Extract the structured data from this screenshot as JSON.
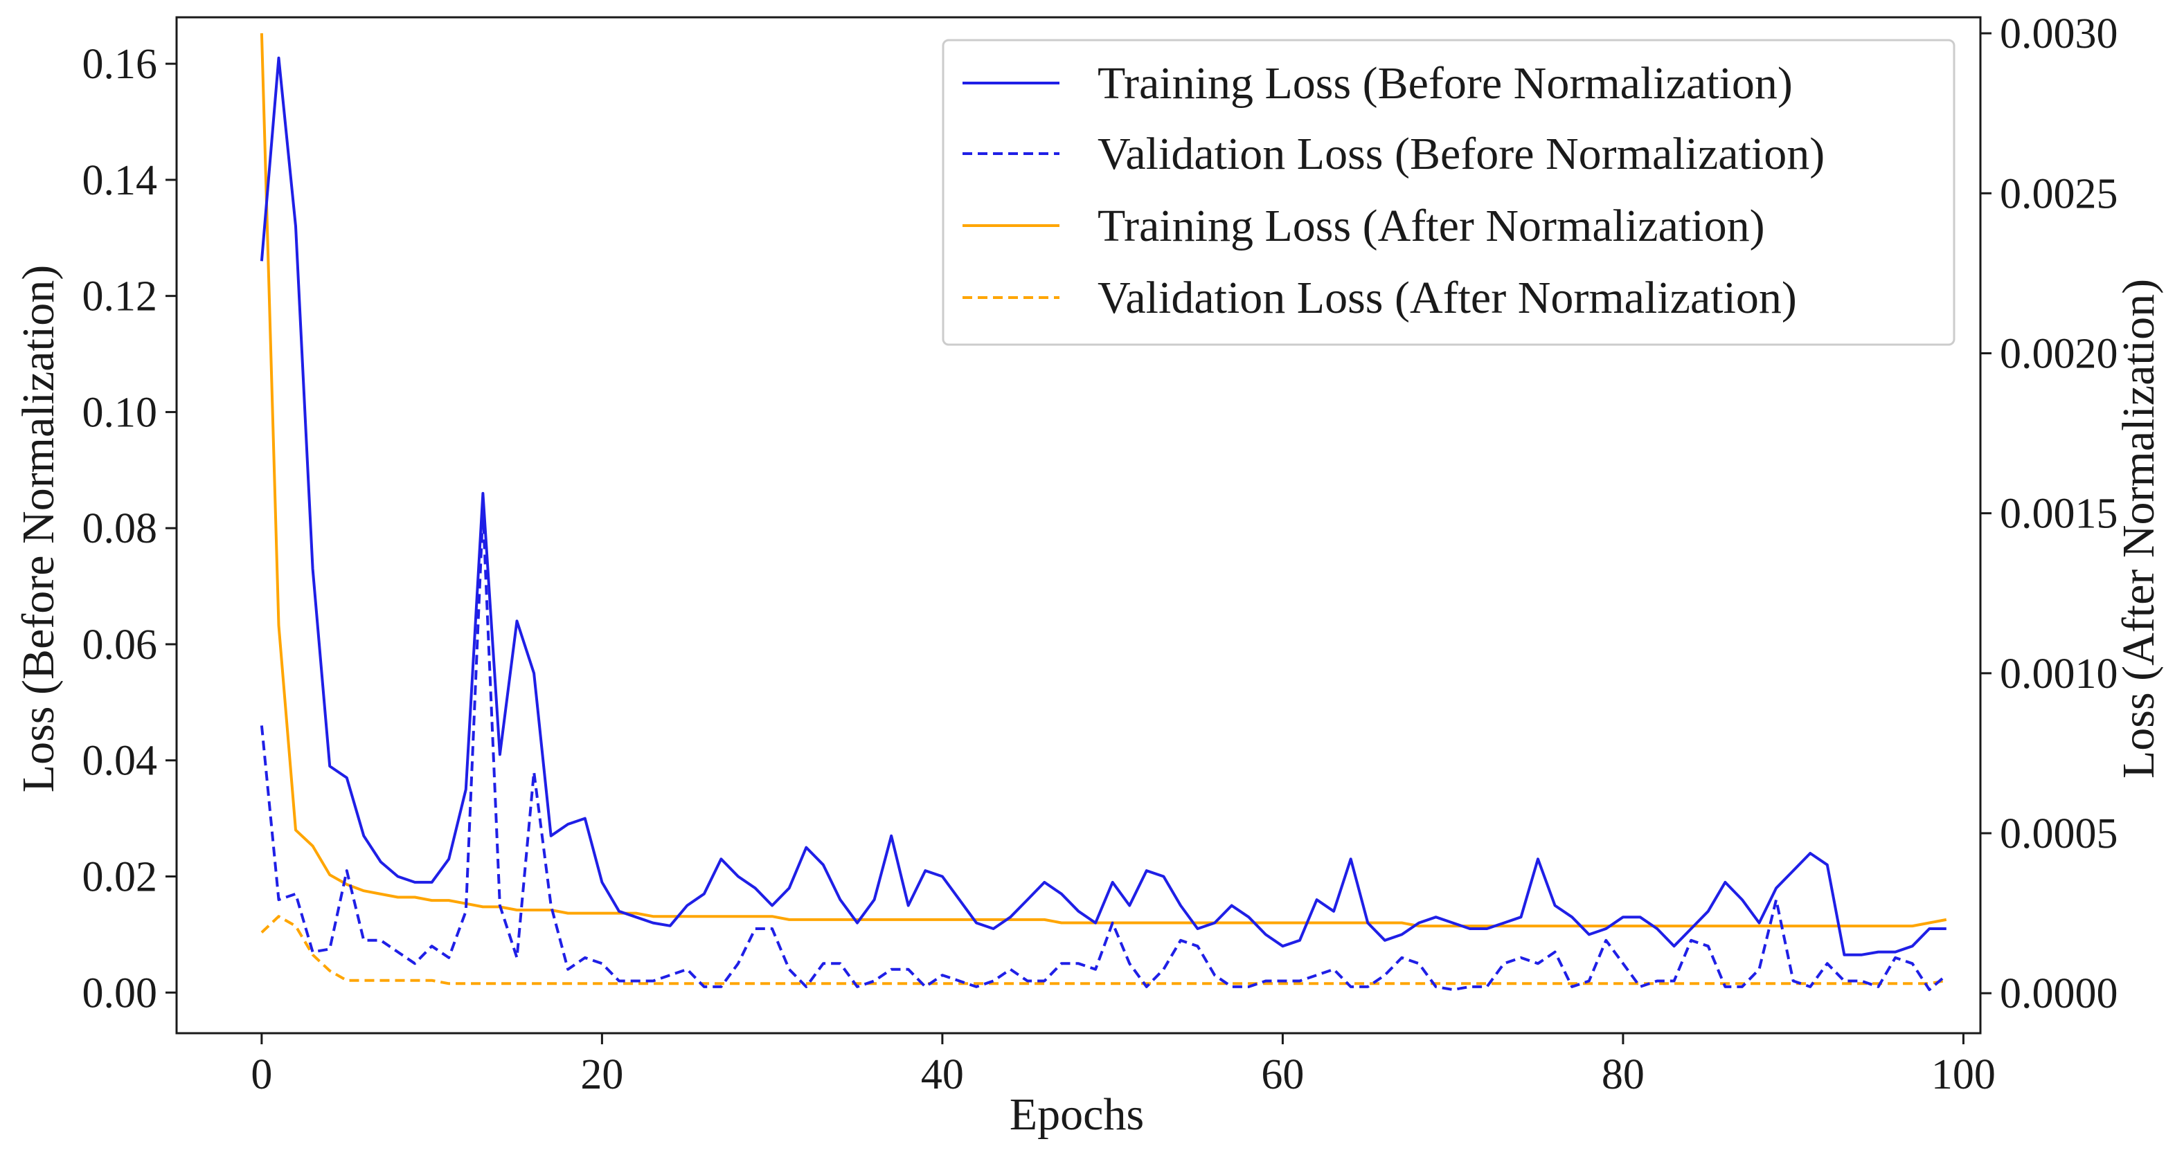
{
  "chart_data": {
    "type": "line",
    "title": "",
    "xlabel": "Epochs",
    "ylabel_left": "Loss (Before Normalization)",
    "ylabel_right": "Loss (After Normalization)",
    "xlim": [
      -5,
      101
    ],
    "ylim_left": [
      -0.007,
      0.168
    ],
    "ylim_right": [
      -0.000125,
      0.00305
    ],
    "xticks": [
      0,
      20,
      40,
      60,
      80,
      100
    ],
    "xtick_labels": [
      "0",
      "20",
      "40",
      "60",
      "80",
      "100"
    ],
    "yticks_left": [
      0.0,
      0.02,
      0.04,
      0.06,
      0.08,
      0.1,
      0.12,
      0.14,
      0.16
    ],
    "ytick_labels_left": [
      "0.00",
      "0.02",
      "0.04",
      "0.06",
      "0.08",
      "0.10",
      "0.12",
      "0.14",
      "0.16"
    ],
    "yticks_right": [
      0.0,
      0.0005,
      0.001,
      0.0015,
      0.002,
      0.0025,
      0.003
    ],
    "ytick_labels_right": [
      "0.0000",
      "0.0005",
      "0.0010",
      "0.0015",
      "0.0020",
      "0.0025",
      "0.0030"
    ],
    "grid": false,
    "legend_position": "top-right",
    "colors": {
      "before": "#1f1fe6",
      "after": "#ffa500",
      "axes": "#1a1a1a"
    },
    "x": [
      0,
      1,
      2,
      3,
      4,
      5,
      6,
      7,
      8,
      9,
      10,
      11,
      12,
      13,
      14,
      15,
      16,
      17,
      18,
      19,
      20,
      21,
      22,
      23,
      24,
      25,
      26,
      27,
      28,
      29,
      30,
      31,
      32,
      33,
      34,
      35,
      36,
      37,
      38,
      39,
      40,
      41,
      42,
      43,
      44,
      45,
      46,
      47,
      48,
      49,
      50,
      51,
      52,
      53,
      54,
      55,
      56,
      57,
      58,
      59,
      60,
      61,
      62,
      63,
      64,
      65,
      66,
      67,
      68,
      69,
      70,
      71,
      72,
      73,
      74,
      75,
      76,
      77,
      78,
      79,
      80,
      81,
      82,
      83,
      84,
      85,
      86,
      87,
      88,
      89,
      90,
      91,
      92,
      93,
      94,
      95,
      96,
      97,
      98,
      99
    ],
    "series": [
      {
        "name": "Training Loss (Before Normalization)",
        "axis": "left",
        "style": "solid",
        "color": "#1f1fe6",
        "values": [
          0.126,
          0.161,
          0.132,
          0.073,
          0.039,
          0.037,
          0.027,
          0.0225,
          0.02,
          0.019,
          0.019,
          0.023,
          0.035,
          0.086,
          0.041,
          0.064,
          0.055,
          0.027,
          0.029,
          0.03,
          0.019,
          0.014,
          0.013,
          0.012,
          0.0115,
          0.015,
          0.017,
          0.023,
          0.02,
          0.018,
          0.015,
          0.018,
          0.025,
          0.022,
          0.016,
          0.012,
          0.016,
          0.027,
          0.015,
          0.021,
          0.02,
          0.016,
          0.012,
          0.011,
          0.013,
          0.016,
          0.019,
          0.017,
          0.014,
          0.012,
          0.019,
          0.015,
          0.021,
          0.02,
          0.015,
          0.011,
          0.012,
          0.015,
          0.013,
          0.01,
          0.008,
          0.009,
          0.016,
          0.014,
          0.023,
          0.012,
          0.009,
          0.01,
          0.012,
          0.013,
          0.012,
          0.011,
          0.011,
          0.012,
          0.013,
          0.023,
          0.015,
          0.013,
          0.01,
          0.011,
          0.013,
          0.013,
          0.011,
          0.008,
          0.011,
          0.014,
          0.019,
          0.016,
          0.012,
          0.018,
          0.021,
          0.024,
          0.022,
          0.0065,
          0.0065,
          0.007,
          0.007,
          0.008,
          0.011,
          0.011
        ]
      },
      {
        "name": "Validation Loss (Before Normalization)",
        "axis": "left",
        "style": "dashed",
        "color": "#1f1fe6",
        "values": [
          0.046,
          0.016,
          0.017,
          0.007,
          0.0075,
          0.021,
          0.009,
          0.009,
          0.007,
          0.005,
          0.008,
          0.006,
          0.014,
          0.083,
          0.015,
          0.006,
          0.038,
          0.015,
          0.004,
          0.006,
          0.005,
          0.002,
          0.002,
          0.002,
          0.003,
          0.004,
          0.001,
          0.001,
          0.005,
          0.011,
          0.011,
          0.004,
          0.001,
          0.005,
          0.005,
          0.001,
          0.002,
          0.004,
          0.004,
          0.001,
          0.003,
          0.002,
          0.001,
          0.002,
          0.004,
          0.002,
          0.002,
          0.005,
          0.005,
          0.004,
          0.012,
          0.005,
          0.001,
          0.004,
          0.009,
          0.008,
          0.003,
          0.001,
          0.001,
          0.002,
          0.002,
          0.002,
          0.003,
          0.004,
          0.001,
          0.001,
          0.003,
          0.006,
          0.005,
          0.001,
          0.0005,
          0.001,
          0.001,
          0.005,
          0.006,
          0.005,
          0.007,
          0.001,
          0.002,
          0.009,
          0.005,
          0.001,
          0.002,
          0.002,
          0.009,
          0.008,
          0.001,
          0.001,
          0.004,
          0.016,
          0.002,
          0.001,
          0.005,
          0.002,
          0.002,
          0.001,
          0.006,
          0.005,
          0.0005,
          0.003
        ]
      },
      {
        "name": "Training Loss (After Normalization)",
        "axis": "right",
        "style": "solid",
        "color": "#ffa500",
        "values": [
          0.003,
          0.00115,
          0.00051,
          0.00046,
          0.00037,
          0.00034,
          0.00032,
          0.00031,
          0.0003,
          0.0003,
          0.00029,
          0.00029,
          0.00028,
          0.00027,
          0.00027,
          0.00026,
          0.00026,
          0.00026,
          0.00025,
          0.00025,
          0.00025,
          0.00025,
          0.00025,
          0.00024,
          0.00024,
          0.00024,
          0.00024,
          0.00024,
          0.00024,
          0.00024,
          0.00024,
          0.00023,
          0.00023,
          0.00023,
          0.00023,
          0.00023,
          0.00023,
          0.00023,
          0.00023,
          0.00023,
          0.00023,
          0.00023,
          0.00023,
          0.00023,
          0.00023,
          0.00023,
          0.00023,
          0.00022,
          0.00022,
          0.00022,
          0.00022,
          0.00022,
          0.00022,
          0.00022,
          0.00022,
          0.00022,
          0.00022,
          0.00022,
          0.00022,
          0.00022,
          0.00022,
          0.00022,
          0.00022,
          0.00022,
          0.00022,
          0.00022,
          0.00022,
          0.00022,
          0.00021,
          0.00021,
          0.00021,
          0.00021,
          0.00021,
          0.00021,
          0.00021,
          0.00021,
          0.00021,
          0.00021,
          0.00021,
          0.00021,
          0.00021,
          0.00021,
          0.00021,
          0.00021,
          0.00021,
          0.00021,
          0.00021,
          0.00021,
          0.00021,
          0.00021,
          0.00021,
          0.00021,
          0.00021,
          0.00021,
          0.00021,
          0.00021,
          0.00021,
          0.00021,
          0.00022,
          0.00023
        ]
      },
      {
        "name": "Validation Loss (After Normalization)",
        "axis": "right",
        "style": "dashed",
        "color": "#ffa500",
        "values": [
          0.00019,
          0.00024,
          0.00021,
          0.00012,
          7e-05,
          4e-05,
          4e-05,
          4e-05,
          4e-05,
          4e-05,
          4e-05,
          3e-05,
          3e-05,
          3e-05,
          3e-05,
          3e-05,
          3e-05,
          3e-05,
          3e-05,
          3e-05,
          3e-05,
          3e-05,
          3e-05,
          3e-05,
          3e-05,
          3e-05,
          3e-05,
          3e-05,
          3e-05,
          3e-05,
          3e-05,
          3e-05,
          3e-05,
          3e-05,
          3e-05,
          3e-05,
          3e-05,
          3e-05,
          3e-05,
          3e-05,
          3e-05,
          3e-05,
          3e-05,
          3e-05,
          3e-05,
          3e-05,
          3e-05,
          3e-05,
          3e-05,
          3e-05,
          3e-05,
          3e-05,
          3e-05,
          3e-05,
          3e-05,
          3e-05,
          3e-05,
          3e-05,
          3e-05,
          3e-05,
          3e-05,
          3e-05,
          3e-05,
          3e-05,
          3e-05,
          3e-05,
          3e-05,
          3e-05,
          3e-05,
          3e-05,
          3e-05,
          3e-05,
          3e-05,
          3e-05,
          3e-05,
          3e-05,
          3e-05,
          3e-05,
          3e-05,
          3e-05,
          3e-05,
          3e-05,
          3e-05,
          3e-05,
          3e-05,
          3e-05,
          3e-05,
          3e-05,
          3e-05,
          3e-05,
          3e-05,
          3e-05,
          3e-05,
          3e-05,
          3e-05,
          3e-05,
          3e-05,
          3e-05,
          3e-05,
          4e-05
        ]
      }
    ]
  }
}
